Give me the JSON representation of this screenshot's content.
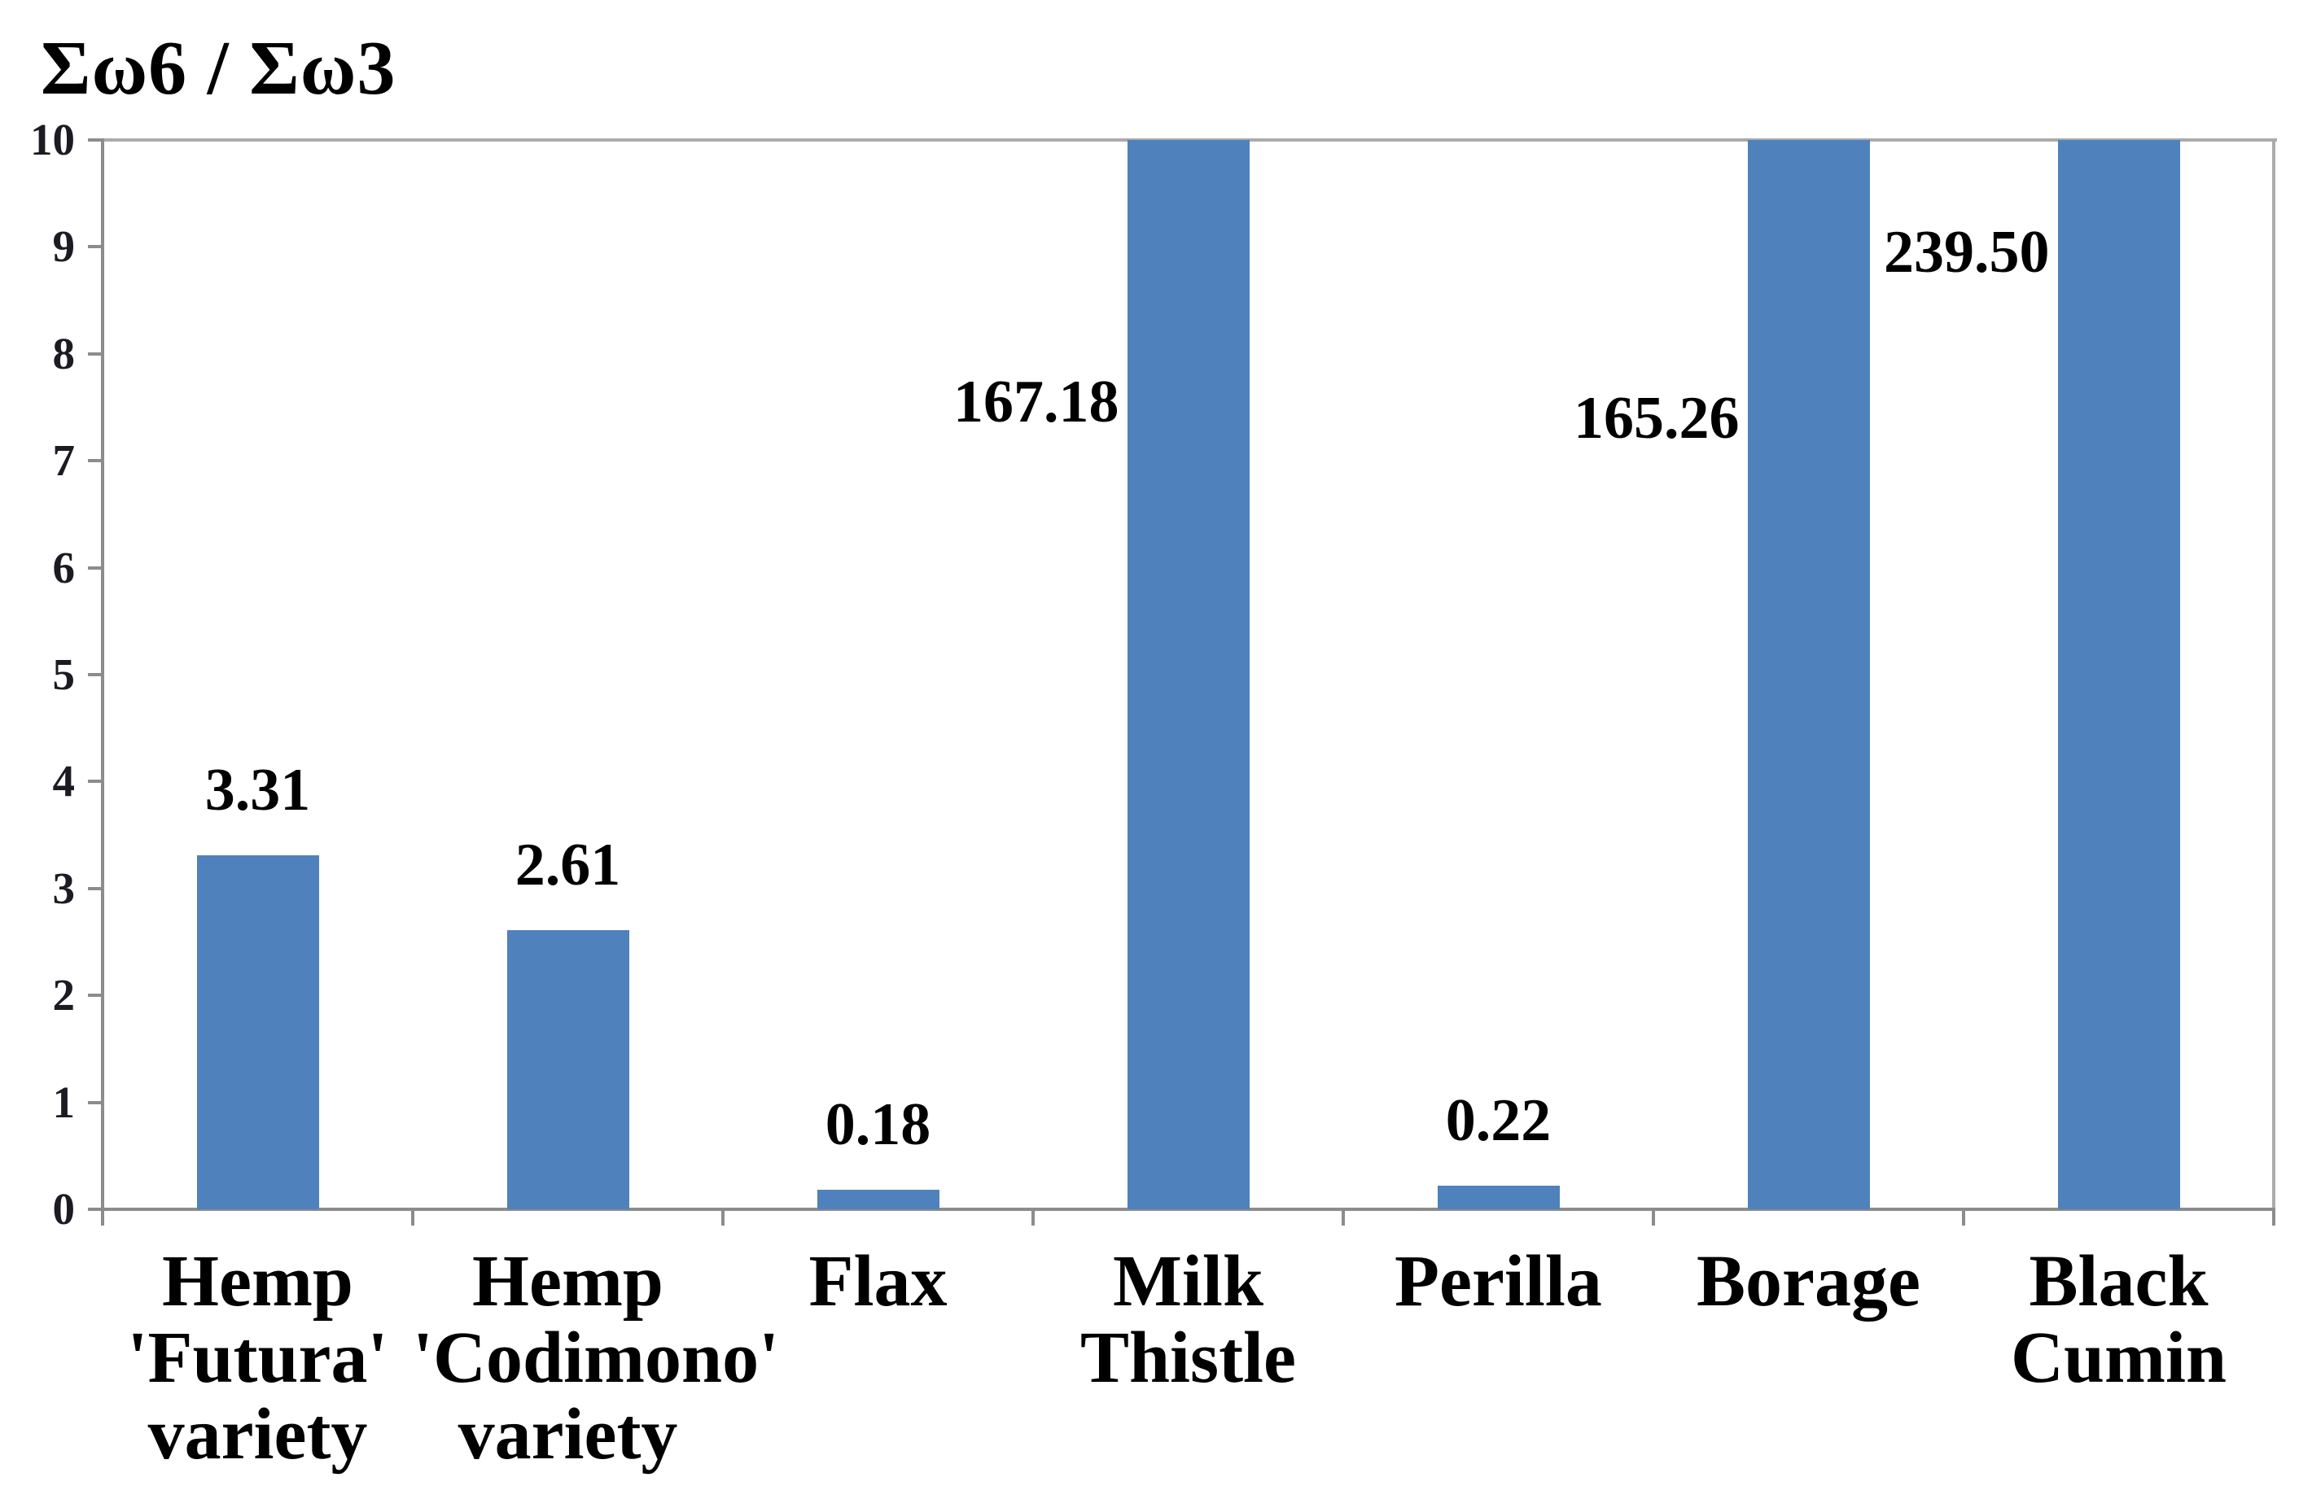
{
  "chart_data": {
    "type": "bar",
    "title": "Σω6 / Σω3",
    "categories": [
      "Hemp 'Futura' variety",
      "Hemp 'Codimono' variety",
      "Flax",
      "Milk Thistle",
      "Perilla",
      "Borage",
      "Black Cumin"
    ],
    "category_lines": [
      [
        "Hemp",
        "'Futura'",
        "variety"
      ],
      [
        "Hemp",
        "'Codimono'",
        "variety"
      ],
      [
        "Flax"
      ],
      [
        "Milk",
        "Thistle"
      ],
      [
        "Perilla"
      ],
      [
        "Borage"
      ],
      [
        "Black",
        "Cumin"
      ]
    ],
    "values": [
      3.31,
      2.61,
      0.18,
      167.18,
      0.22,
      165.26,
      239.5
    ],
    "data_labels": [
      "3.31",
      "2.61",
      "0.18",
      "167.18",
      "0.22",
      "165.26",
      "239.50"
    ],
    "label_placement": [
      {
        "pos": "above"
      },
      {
        "pos": "above"
      },
      {
        "pos": "above"
      },
      {
        "pos": "left",
        "y_units": 7.55
      },
      {
        "pos": "above"
      },
      {
        "pos": "left",
        "y_units": 7.4
      },
      {
        "pos": "left",
        "y_units": 8.95
      }
    ],
    "xlabel": "",
    "ylabel": "Σω6 / Σω3",
    "ylim": [
      0,
      10
    ],
    "y_ticks": [
      0,
      1,
      2,
      3,
      4,
      5,
      6,
      7,
      8,
      9,
      10
    ],
    "grid": false,
    "legend": false,
    "layout": {
      "bars_exceeding_ymax_clipped_at_top": true,
      "value_labels_for_clipped_bars_left_of_bar": true
    },
    "colors": {
      "bar": "#4f81bd",
      "axis": "#8c8c8c",
      "plot_border": "#ababab",
      "text": "#000000",
      "tick_text": "#1b1b23",
      "background": "#ffffff"
    }
  }
}
